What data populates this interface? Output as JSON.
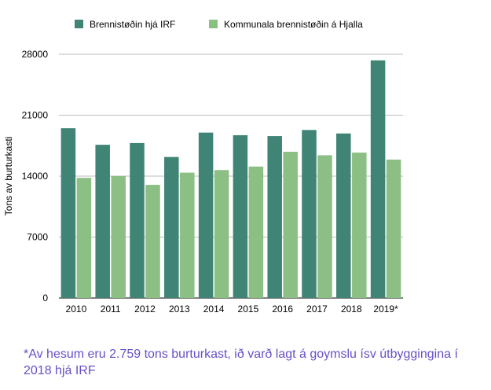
{
  "chart_data": {
    "type": "bar",
    "title": "",
    "xlabel": "",
    "ylabel": "Tons av burturkasti",
    "categories": [
      "2010",
      "2011",
      "2012",
      "2013",
      "2014",
      "2015",
      "2016",
      "2017",
      "2018",
      "2019*"
    ],
    "series": [
      {
        "name": "Brennistøðin hjá IRF",
        "color": "#3f8475",
        "values": [
          19500,
          17600,
          17800,
          16200,
          19000,
          18700,
          18600,
          19300,
          18900,
          27300
        ]
      },
      {
        "name": "Kommunala brennistøðin á Hjalla",
        "color": "#8bbf84",
        "values": [
          13800,
          14000,
          13000,
          14400,
          14700,
          15100,
          16800,
          16400,
          16700,
          15900
        ]
      }
    ],
    "ylim": [
      0,
      28000
    ],
    "yticks": [
      "0",
      "7000",
      "14000",
      "21000",
      "28000"
    ],
    "grid": true,
    "legend": "top"
  },
  "footnote": "*Av hesum eru 2.759 tons burturkast, ið varð lagt á goymslu ísv útbyggingina í 2018 hjá IRF"
}
